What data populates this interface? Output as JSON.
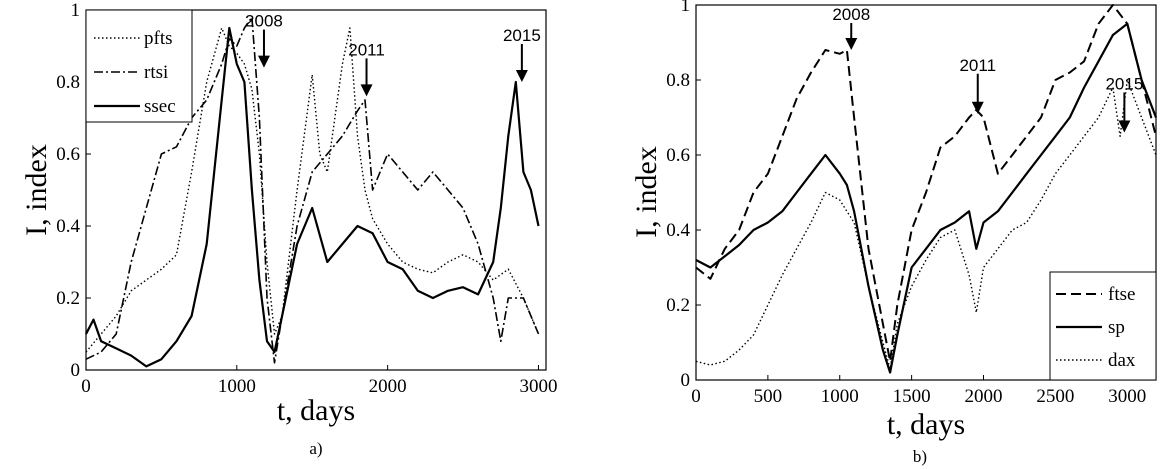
{
  "chart_data": [
    {
      "type": "line",
      "panel_label": "a)",
      "xlabel": "t, days",
      "ylabel": "I, index",
      "xlim": [
        0,
        3050
      ],
      "ylim": [
        0,
        1
      ],
      "xticks": [
        0,
        1000,
        2000,
        3000
      ],
      "yticks": [
        0,
        0.2,
        0.4,
        0.6,
        0.8,
        1
      ],
      "ytick_labels": [
        "0",
        "0.2",
        "0.4",
        "0.6",
        "0.8",
        "1"
      ],
      "legend_position": "top-left",
      "series": [
        {
          "name": "pfts",
          "style": "dotted",
          "x": [
            0,
            100,
            200,
            300,
            400,
            500,
            600,
            700,
            800,
            900,
            950,
            1000,
            1050,
            1100,
            1150,
            1200,
            1250,
            1300,
            1400,
            1500,
            1550,
            1600,
            1700,
            1750,
            1800,
            1850,
            1900,
            2000,
            2100,
            2200,
            2300,
            2400,
            2500,
            2600,
            2700,
            2800,
            2900,
            3000
          ],
          "y": [
            0.05,
            0.1,
            0.15,
            0.22,
            0.25,
            0.28,
            0.32,
            0.55,
            0.8,
            0.95,
            0.9,
            0.88,
            0.85,
            0.78,
            0.6,
            0.3,
            0.1,
            0.15,
            0.5,
            0.82,
            0.6,
            0.55,
            0.85,
            0.95,
            0.65,
            0.5,
            0.42,
            0.35,
            0.3,
            0.28,
            0.27,
            0.3,
            0.32,
            0.3,
            0.25,
            0.28,
            0.2,
            0.1
          ]
        },
        {
          "name": "rtsi",
          "style": "dashdot",
          "x": [
            0,
            100,
            200,
            300,
            400,
            500,
            600,
            700,
            800,
            900,
            950,
            1000,
            1050,
            1100,
            1150,
            1200,
            1250,
            1300,
            1400,
            1500,
            1600,
            1700,
            1800,
            1850,
            1900,
            2000,
            2100,
            2200,
            2300,
            2400,
            2500,
            2600,
            2700,
            2750,
            2800,
            2900,
            3000
          ],
          "y": [
            0.03,
            0.05,
            0.1,
            0.3,
            0.45,
            0.6,
            0.62,
            0.7,
            0.75,
            0.85,
            0.92,
            0.9,
            0.95,
            0.98,
            0.7,
            0.2,
            0.02,
            0.15,
            0.4,
            0.55,
            0.6,
            0.65,
            0.72,
            0.75,
            0.5,
            0.6,
            0.55,
            0.5,
            0.55,
            0.5,
            0.45,
            0.35,
            0.2,
            0.08,
            0.2,
            0.2,
            0.1
          ]
        },
        {
          "name": "ssec",
          "style": "solid",
          "x": [
            0,
            50,
            100,
            200,
            300,
            400,
            500,
            600,
            700,
            800,
            850,
            900,
            950,
            1000,
            1050,
            1100,
            1150,
            1200,
            1250,
            1300,
            1400,
            1500,
            1600,
            1700,
            1800,
            1900,
            2000,
            2100,
            2200,
            2300,
            2400,
            2500,
            2600,
            2700,
            2750,
            2800,
            2850,
            2900,
            2950,
            3000
          ],
          "y": [
            0.1,
            0.14,
            0.08,
            0.06,
            0.04,
            0.01,
            0.03,
            0.08,
            0.15,
            0.35,
            0.55,
            0.75,
            0.95,
            0.85,
            0.8,
            0.5,
            0.25,
            0.08,
            0.05,
            0.15,
            0.35,
            0.45,
            0.3,
            0.35,
            0.4,
            0.38,
            0.3,
            0.28,
            0.22,
            0.2,
            0.22,
            0.23,
            0.21,
            0.3,
            0.45,
            0.65,
            0.8,
            0.55,
            0.5,
            0.4
          ]
        }
      ],
      "annotations": [
        {
          "text": "2008",
          "x": 1180,
          "y": 0.84
        },
        {
          "text": "2011",
          "x": 1860,
          "y": 0.76
        },
        {
          "text": "2015",
          "x": 2890,
          "y": 0.8
        }
      ]
    },
    {
      "type": "line",
      "panel_label": "b)",
      "xlabel": "t, days",
      "ylabel": "I, index",
      "xlim": [
        0,
        3200
      ],
      "ylim": [
        0,
        1
      ],
      "xticks": [
        0,
        500,
        1000,
        1500,
        2000,
        2500,
        3000
      ],
      "yticks": [
        0,
        0.2,
        0.4,
        0.6,
        0.8,
        1
      ],
      "ytick_labels": [
        "0",
        "0.2",
        "0.4",
        "0.6",
        "0.8",
        "1"
      ],
      "legend_position": "bottom-right",
      "series": [
        {
          "name": "ftse",
          "style": "dashed",
          "x": [
            0,
            100,
            200,
            300,
            400,
            500,
            600,
            700,
            800,
            900,
            1000,
            1050,
            1100,
            1200,
            1300,
            1350,
            1400,
            1500,
            1600,
            1700,
            1800,
            1900,
            1950,
            2000,
            2100,
            2200,
            2300,
            2400,
            2500,
            2600,
            2700,
            2800,
            2900,
            3000,
            3100,
            3200
          ],
          "y": [
            0.3,
            0.27,
            0.35,
            0.4,
            0.5,
            0.55,
            0.65,
            0.75,
            0.82,
            0.88,
            0.87,
            0.88,
            0.7,
            0.35,
            0.15,
            0.05,
            0.2,
            0.4,
            0.5,
            0.62,
            0.65,
            0.7,
            0.72,
            0.7,
            0.55,
            0.6,
            0.65,
            0.7,
            0.8,
            0.82,
            0.85,
            0.95,
            1.0,
            0.95,
            0.8,
            0.65
          ]
        },
        {
          "name": "sp",
          "style": "solid",
          "x": [
            0,
            100,
            200,
            300,
            400,
            500,
            600,
            700,
            800,
            900,
            1000,
            1050,
            1100,
            1200,
            1300,
            1350,
            1400,
            1500,
            1600,
            1700,
            1800,
            1900,
            1950,
            2000,
            2100,
            2200,
            2300,
            2400,
            2500,
            2600,
            2700,
            2800,
            2900,
            3000,
            3100,
            3200
          ],
          "y": [
            0.32,
            0.3,
            0.33,
            0.36,
            0.4,
            0.42,
            0.45,
            0.5,
            0.55,
            0.6,
            0.55,
            0.52,
            0.45,
            0.25,
            0.08,
            0.02,
            0.12,
            0.3,
            0.35,
            0.4,
            0.42,
            0.45,
            0.35,
            0.42,
            0.45,
            0.5,
            0.55,
            0.6,
            0.65,
            0.7,
            0.78,
            0.85,
            0.92,
            0.95,
            0.8,
            0.7
          ]
        },
        {
          "name": "dax",
          "style": "dotted",
          "x": [
            0,
            100,
            200,
            300,
            400,
            500,
            600,
            700,
            800,
            900,
            1000,
            1050,
            1100,
            1200,
            1300,
            1350,
            1400,
            1500,
            1600,
            1700,
            1800,
            1900,
            1950,
            2000,
            2100,
            2200,
            2300,
            2400,
            2500,
            2600,
            2700,
            2800,
            2900,
            2950,
            3000,
            3100,
            3200
          ],
          "y": [
            0.05,
            0.04,
            0.05,
            0.08,
            0.12,
            0.2,
            0.28,
            0.35,
            0.42,
            0.5,
            0.48,
            0.45,
            0.42,
            0.25,
            0.1,
            0.03,
            0.15,
            0.25,
            0.32,
            0.38,
            0.4,
            0.28,
            0.18,
            0.3,
            0.35,
            0.4,
            0.42,
            0.48,
            0.55,
            0.6,
            0.65,
            0.7,
            0.78,
            0.65,
            0.8,
            0.7,
            0.6
          ]
        }
      ],
      "annotations": [
        {
          "text": "2008",
          "x": 1080,
          "y": 0.88
        },
        {
          "text": "2011",
          "x": 1960,
          "y": 0.71
        },
        {
          "text": "2015",
          "x": 2980,
          "y": 0.66
        }
      ]
    }
  ]
}
